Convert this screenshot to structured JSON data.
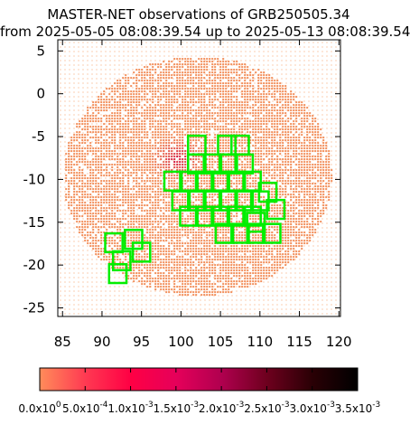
{
  "chart_data": {
    "type": "heatmap",
    "title": "MASTER-NET observations of GRB250505.34",
    "subtitle": "from 2025-05-05 08:08:39.54 up to 2025-05-13 08:08:39.54",
    "xlabel": "",
    "ylabel": "",
    "xlim": [
      84.4,
      120.2
    ],
    "ylim": [
      -26.0,
      6.3
    ],
    "x_ticks": [
      85,
      90,
      95,
      100,
      105,
      110,
      115,
      120
    ],
    "x_tick_labels": [
      "85",
      "90",
      "95",
      "100",
      "105",
      "110",
      "115",
      "120"
    ],
    "y_ticks": [
      5,
      0,
      -5,
      -10,
      -15,
      -20,
      -25
    ],
    "y_tick_labels": [
      "5",
      "0",
      "-5",
      "-10",
      "-15",
      "-20",
      "-25"
    ],
    "grid": false,
    "probability_region": {
      "center": [
        102.0,
        -9.5
      ],
      "radius_x": 17.0,
      "radius_y": 14.0,
      "high_density_center": [
        99.5,
        -7.5
      ],
      "low_fill_color": "#f28e5a",
      "high_fill_color": "#d0103a"
    },
    "colorbar": {
      "min": 0.0,
      "max": 0.0035,
      "ticks": [
        0.0,
        0.0005,
        0.001,
        0.0015,
        0.002,
        0.0025,
        0.003,
        0.0035
      ],
      "tick_labels": [
        {
          "base": "0.0x10",
          "exp": "0"
        },
        {
          "base": "5.0x10",
          "exp": "-4"
        },
        {
          "base": "1.0x10",
          "exp": "-3"
        },
        {
          "base": "1.5x10",
          "exp": "-3"
        },
        {
          "base": "2.0x10",
          "exp": "-3"
        },
        {
          "base": "2.5x10",
          "exp": "-3"
        },
        {
          "base": "3.0x10",
          "exp": "-3"
        },
        {
          "base": "3.5x10",
          "exp": "-3"
        }
      ],
      "colors": [
        "#ff8c5a",
        "#ff3a52",
        "#ff0044",
        "#e6005a",
        "#b0004f",
        "#6e001e",
        "#2a0005",
        "#000000"
      ]
    },
    "fields": [
      {
        "x": 102.0,
        "y": -6.0
      },
      {
        "x": 105.8,
        "y": -6.0
      },
      {
        "x": 107.5,
        "y": -6.0
      },
      {
        "x": 102.0,
        "y": -8.2
      },
      {
        "x": 104.0,
        "y": -8.2
      },
      {
        "x": 106.0,
        "y": -8.2
      },
      {
        "x": 108.0,
        "y": -8.2
      },
      {
        "x": 99.0,
        "y": -10.2
      },
      {
        "x": 101.0,
        "y": -10.2
      },
      {
        "x": 103.0,
        "y": -10.2
      },
      {
        "x": 105.0,
        "y": -10.2
      },
      {
        "x": 107.0,
        "y": -10.2
      },
      {
        "x": 109.0,
        "y": -10.2
      },
      {
        "x": 100.0,
        "y": -12.5
      },
      {
        "x": 102.0,
        "y": -12.5
      },
      {
        "x": 104.0,
        "y": -12.5
      },
      {
        "x": 106.0,
        "y": -12.5
      },
      {
        "x": 108.0,
        "y": -12.5
      },
      {
        "x": 110.0,
        "y": -12.5
      },
      {
        "x": 111.0,
        "y": -11.5
      },
      {
        "x": 112.0,
        "y": -13.5
      },
      {
        "x": 101.0,
        "y": -14.3
      },
      {
        "x": 103.0,
        "y": -14.3
      },
      {
        "x": 105.0,
        "y": -14.3
      },
      {
        "x": 107.0,
        "y": -14.3
      },
      {
        "x": 109.0,
        "y": -14.3
      },
      {
        "x": 109.5,
        "y": -15.0
      },
      {
        "x": 105.5,
        "y": -16.3
      },
      {
        "x": 107.5,
        "y": -16.3
      },
      {
        "x": 109.5,
        "y": -16.3
      },
      {
        "x": 111.5,
        "y": -16.3
      },
      {
        "x": 91.5,
        "y": -17.4
      },
      {
        "x": 94.0,
        "y": -17.0
      },
      {
        "x": 95.0,
        "y": -18.5
      },
      {
        "x": 92.5,
        "y": -19.5
      },
      {
        "x": 92.0,
        "y": -21.0
      }
    ],
    "field_color": "#00ee00"
  }
}
